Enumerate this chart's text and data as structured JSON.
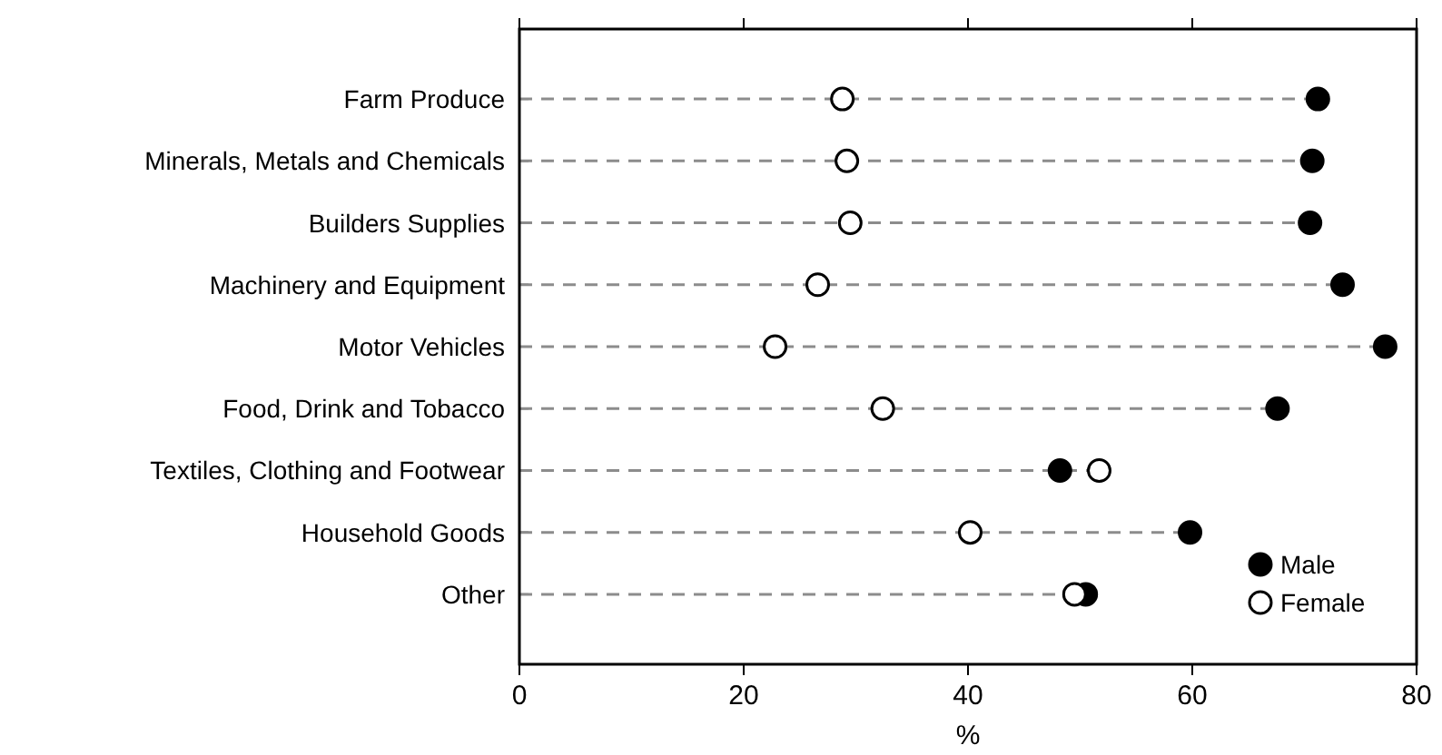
{
  "chart_data": {
    "type": "lollipop",
    "orientation": "horizontal",
    "xlabel": "%",
    "categories": [
      "Farm Produce",
      "Minerals, Metals and Chemicals",
      "Builders Supplies",
      "Machinery and Equipment",
      "Motor Vehicles",
      "Food, Drink and Tobacco",
      "Textiles, Clothing and Footwear",
      "Household Goods",
      "Other"
    ],
    "series": [
      {
        "name": "Male",
        "color": "#000000",
        "values": [
          71.2,
          70.7,
          70.5,
          73.4,
          77.2,
          67.6,
          48.2,
          59.8,
          50.5
        ]
      },
      {
        "name": "Female",
        "color": "#ffffff",
        "values": [
          28.8,
          29.2,
          29.5,
          26.6,
          22.8,
          32.4,
          51.7,
          40.2,
          49.5
        ]
      }
    ],
    "xlim": [
      0,
      80
    ],
    "xticks": [
      0,
      20,
      40,
      60,
      80
    ],
    "line_style": "dashed",
    "marker": "circle",
    "legend": "bottom right"
  }
}
